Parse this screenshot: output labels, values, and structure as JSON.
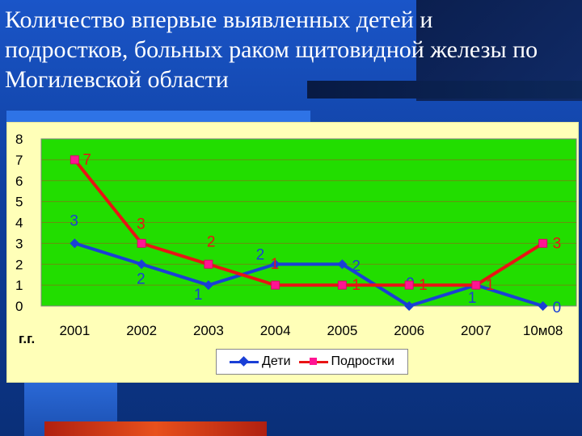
{
  "title": "Количество впервые выявленных  детей и подростков, больных раком щитовидной железы по Могилевской области",
  "chart_data": {
    "type": "line",
    "categories": [
      "2001",
      "2002",
      "2003",
      "2004",
      "2005",
      "2006",
      "2007",
      "10м08"
    ],
    "xlabel": "г.г.",
    "ylabel": "",
    "ylim": [
      0,
      8
    ],
    "yticks": [
      "0",
      "1",
      "2",
      "3",
      "4",
      "5",
      "6",
      "7",
      "8"
    ],
    "grid": true,
    "legend_position": "bottom",
    "plot_background": "#22dd00",
    "series": [
      {
        "name": "Дети",
        "values": [
          3,
          2,
          1,
          2,
          2,
          0,
          1,
          0
        ],
        "color": "#1a3fd6",
        "marker": "diamond"
      },
      {
        "name": "Подростки",
        "values": [
          7,
          3,
          2,
          1,
          1,
          1,
          1,
          3
        ],
        "color": "#e81414",
        "marker": "square"
      }
    ]
  }
}
